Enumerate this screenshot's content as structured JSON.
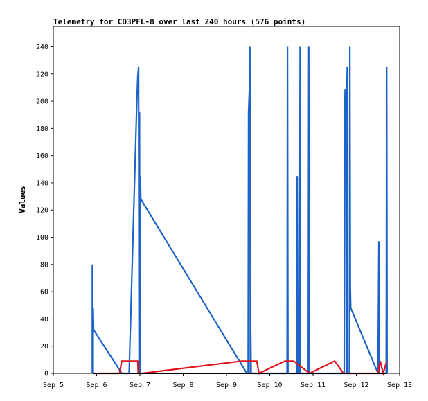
{
  "chart_data": {
    "type": "line",
    "title": "Telemetry for CD3PFL-8 over last 240 hours (576 points)",
    "xlabel": "",
    "ylabel": "Values",
    "xlim": [
      0,
      8
    ],
    "ylim": [
      0,
      255
    ],
    "x_ticks": [
      {
        "x": 0,
        "label": "Sep 5"
      },
      {
        "x": 1,
        "label": "Sep 6"
      },
      {
        "x": 2,
        "label": "Sep 7"
      },
      {
        "x": 3,
        "label": "Sep 8"
      },
      {
        "x": 4,
        "label": "Sep 9"
      },
      {
        "x": 5,
        "label": "Sep 10"
      },
      {
        "x": 6,
        "label": "Sep 11"
      },
      {
        "x": 7,
        "label": "Sep 12"
      },
      {
        "x": 8,
        "label": "Sep 13"
      }
    ],
    "y_ticks": [
      0,
      20,
      40,
      60,
      80,
      100,
      120,
      140,
      160,
      180,
      200,
      220,
      240
    ],
    "series": [
      {
        "color": "#1e64c8",
        "points": [
          [
            0.9,
            0
          ],
          [
            0.9,
            80
          ],
          [
            0.92,
            0
          ],
          [
            0.92,
            48
          ],
          [
            0.93,
            32
          ],
          [
            1.58,
            0
          ],
          [
            1.75,
            0
          ],
          [
            1.93,
            200
          ],
          [
            1.95,
            218
          ],
          [
            1.97,
            225
          ],
          [
            1.98,
            0
          ],
          [
            1.99,
            192
          ],
          [
            2.0,
            0
          ],
          [
            2.01,
            145
          ],
          [
            2.02,
            128
          ],
          [
            4.47,
            0
          ],
          [
            4.5,
            0
          ],
          [
            4.51,
            192
          ],
          [
            4.53,
            208
          ],
          [
            4.54,
            240
          ],
          [
            4.55,
            0
          ],
          [
            4.56,
            32
          ],
          [
            4.57,
            0
          ],
          [
            5.4,
            0
          ],
          [
            5.41,
            240
          ],
          [
            5.42,
            0
          ],
          [
            5.62,
            0
          ],
          [
            5.63,
            145
          ],
          [
            5.64,
            0
          ],
          [
            5.65,
            145
          ],
          [
            5.66,
            0
          ],
          [
            5.69,
            0
          ],
          [
            5.7,
            240
          ],
          [
            5.71,
            0
          ],
          [
            5.89,
            0
          ],
          [
            5.9,
            240
          ],
          [
            5.91,
            0
          ],
          [
            6.72,
            0
          ],
          [
            6.73,
            193
          ],
          [
            6.74,
            208
          ],
          [
            6.76,
            208
          ],
          [
            6.77,
            0
          ],
          [
            6.78,
            208
          ],
          [
            6.79,
            225
          ],
          [
            6.8,
            0
          ],
          [
            6.84,
            0
          ],
          [
            6.85,
            240
          ],
          [
            6.86,
            64
          ],
          [
            6.87,
            48
          ],
          [
            7.5,
            0
          ],
          [
            7.51,
            48
          ],
          [
            7.52,
            97
          ],
          [
            7.53,
            0
          ],
          [
            7.69,
            0
          ],
          [
            7.7,
            225
          ],
          [
            7.71,
            0
          ]
        ]
      },
      {
        "color": "#e0141e",
        "points": [
          [
            0.93,
            0
          ],
          [
            1.53,
            0
          ],
          [
            1.58,
            9
          ],
          [
            1.95,
            9
          ],
          [
            1.96,
            0
          ],
          [
            2.05,
            0
          ],
          [
            4.35,
            9
          ],
          [
            4.7,
            9
          ],
          [
            4.75,
            0
          ],
          [
            5.35,
            9
          ],
          [
            5.55,
            9
          ],
          [
            5.92,
            0
          ],
          [
            6.5,
            9
          ],
          [
            6.7,
            0
          ],
          [
            7.5,
            0
          ],
          [
            7.55,
            9
          ],
          [
            7.62,
            0
          ],
          [
            7.7,
            9
          ]
        ]
      },
      {
        "color": "#000000",
        "points": [
          [
            0.93,
            0
          ],
          [
            7.7,
            0
          ]
        ]
      }
    ]
  }
}
